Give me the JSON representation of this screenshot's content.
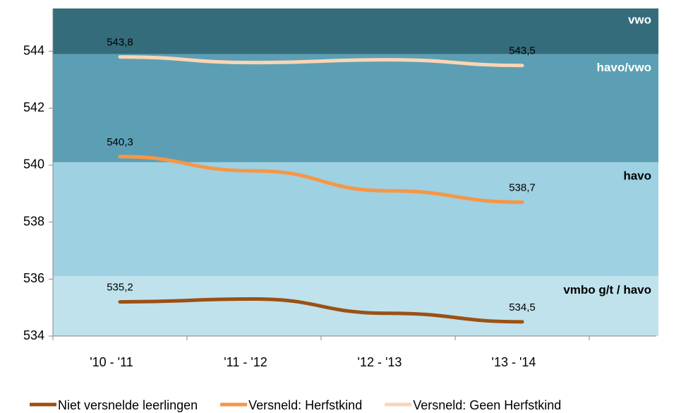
{
  "chart_data": {
    "type": "line",
    "categories": [
      "'10 - '11",
      "'11 - '12",
      "'12 - '13",
      "'13 - '14"
    ],
    "series": [
      {
        "name": "Niet versnelde leerlingen",
        "color": "#9c5014",
        "values": [
          535.2,
          535.3,
          534.8,
          534.5
        ],
        "value_labels": [
          "535,2",
          null,
          null,
          "534,5"
        ]
      },
      {
        "name": "Versneld: Herfstkind",
        "color": "#f79646",
        "values": [
          540.3,
          539.8,
          539.1,
          538.7
        ],
        "value_labels": [
          "540,3",
          null,
          null,
          "538,7"
        ]
      },
      {
        "name": "Versneld: Geen Herfstkind",
        "color": "#fbd5b5",
        "values": [
          543.8,
          543.6,
          543.7,
          543.5
        ],
        "value_labels": [
          "543,8",
          null,
          null,
          "543,5"
        ]
      }
    ],
    "bands": [
      {
        "label": "vwo",
        "from": 543.9,
        "to": 545.5,
        "color": "#356c7b",
        "text_color": "#ffffff"
      },
      {
        "label": "havo/vwo",
        "from": 540.1,
        "to": 543.9,
        "color": "#5c9fb4",
        "text_color": "#ffffff"
      },
      {
        "label": "havo",
        "from": 536.1,
        "to": 540.1,
        "color": "#9ed1e1",
        "text_color": "#000000"
      },
      {
        "label": "vmbo g/t / havo",
        "from": 534,
        "to": 536.1,
        "color": "#bfe2ec",
        "text_color": "#000000"
      }
    ],
    "ylim": [
      534,
      545.5
    ],
    "yticks": [
      534,
      536,
      538,
      540,
      542,
      544
    ],
    "legend": "bottom"
  }
}
